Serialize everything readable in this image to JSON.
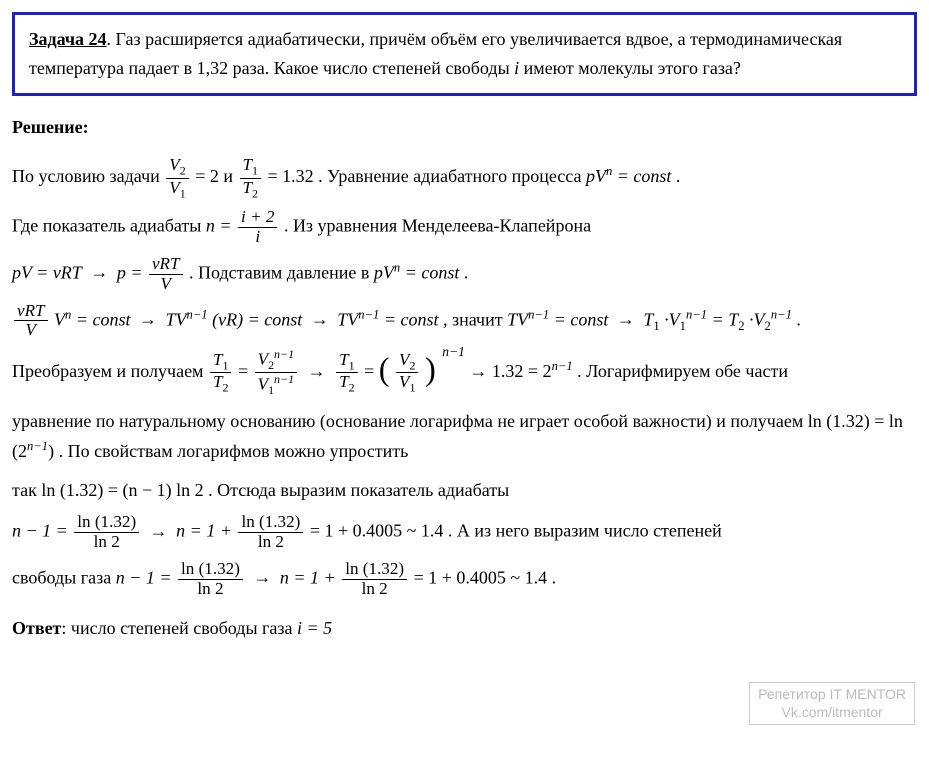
{
  "problem": {
    "label": "Задача 24",
    "text": ". Газ расширяется адиабатически, причём объём его увеличивается вдвое, а термодинамическая температура падает в 1,32 раза. Какое число степеней свободы ",
    "tail": " имеют молекулы этого газа?",
    "var_i": "i"
  },
  "solution_label": "Решение:",
  "p1": {
    "a": "По условию задачи ",
    "eq1_val": "= 2",
    "and": " и ",
    "eq2_val": "= 1.32",
    "b": ". Уравнение адиабатного процесса ",
    "eq3": "pV",
    "eq3_exp": "n",
    "eq3_tail": " = const",
    "dot": "."
  },
  "p2": {
    "a": " Где   показатель адиабаты ",
    "n_eq": "n = ",
    "num": "i + 2",
    "den": "i",
    "b": ".  Из уравнения Менделеева-Клапейрона"
  },
  "p3": {
    "pv": "pV = vRT",
    "arrow": " → ",
    "p_eq": "p = ",
    "num": "vRT",
    "den": "V",
    "b": ". Подставим давление в ",
    "eq": "pV",
    "exp": "n",
    "tail": " = const",
    "dot": "."
  },
  "p4": {
    "num": "vRT",
    "den": "V",
    "vn": "V",
    "vn_exp": "n",
    "c": " = const",
    "arr": " → ",
    "tv1": "TV",
    "tv1_exp": "n−1",
    "vr": "(vR) = const",
    "tv2": "TV",
    "tv2_exp": "n−1",
    "c2": " = const",
    "mean": ", значит ",
    "tv3": "TV",
    "tv3_exp": "n−1",
    "c3": " = const",
    "t1v1": "T",
    "s1": "1",
    "dotv": "·V",
    "exp1": "n−1",
    "eq": " = T",
    "s2": "2",
    "exp2": "n−1",
    "dot": "."
  },
  "p5": {
    "a": "Преобразуем и получаем ",
    "arr": " → ",
    "b": " → 1.32 = 2",
    "exp": "n−1",
    "c": ". Логарифмируем обе части"
  },
  "p6": "уравнение по натуральному основанию (основание логарифма не играет особой важности) и получаем ",
  "p6b": "ln (1.32) = ln (2",
  "p6exp": "n−1",
  "p6c": ")",
  "p6d": ". По свойствам логарифмов можно упростить",
  "p7": {
    "a": "так ",
    "eq": "ln (1.32) = (n − 1) ln 2",
    "b": ". Отсюда выразим показатель адиабаты"
  },
  "p8": {
    "n1": "n − 1 = ",
    "num": "ln (1.32)",
    "den": "ln 2",
    "arr": " → ",
    "n2": "n = 1 + ",
    "tail": " = 1 + 0.4005 ~ 1.4",
    "b": ".  А из него выразим число степеней"
  },
  "p9": {
    "a": "свободы газа ",
    "n1": "n − 1 = ",
    "num": "ln (1.32)",
    "den": "ln 2",
    "arr": " → ",
    "n2": "n = 1 + ",
    "tail": " = 1 + 0.4005 ~ 1.4",
    "dot": "."
  },
  "answer": {
    "label": "Ответ",
    "text": ": число степеней свободы газа ",
    "eq": "i = 5"
  },
  "watermark": {
    "l1": "Репетитор IT MENTOR",
    "l2": "Vk.com/itmentor"
  },
  "frac": {
    "V2": "V",
    "s2": "2",
    "V1": "V",
    "s1": "1",
    "T1": "T",
    "T2": "T"
  }
}
